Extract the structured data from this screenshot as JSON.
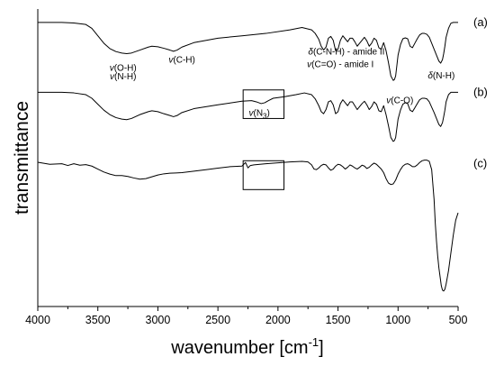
{
  "chart_data": {
    "type": "line",
    "xlabel": "wavenumber [cm",
    "xlabel_superscript": "-1",
    "xlabel_suffix": "]",
    "ylabel": "transmittance",
    "xlim": [
      4000,
      500
    ],
    "ylim": [
      0,
      1
    ],
    "xticks": [
      4000,
      3500,
      3000,
      2500,
      2000,
      1500,
      1000,
      500
    ],
    "y_tick_labels": false,
    "grid": false,
    "legend": "none",
    "series": [
      {
        "name": "(a)",
        "x": [
          4000,
          3800,
          3700,
          3600,
          3550,
          3500,
          3450,
          3400,
          3350,
          3300,
          3260,
          3220,
          3150,
          3080,
          3050,
          3000,
          2950,
          2900,
          2870,
          2840,
          2800,
          2700,
          2500,
          2300,
          2100,
          1900,
          1800,
          1720,
          1690,
          1660,
          1640,
          1620,
          1600,
          1580,
          1560,
          1540,
          1520,
          1500,
          1480,
          1460,
          1440,
          1420,
          1400,
          1380,
          1360,
          1340,
          1320,
          1300,
          1280,
          1260,
          1240,
          1220,
          1200,
          1180,
          1160,
          1140,
          1120,
          1100,
          1080,
          1060,
          1040,
          1030,
          1020,
          1000,
          980,
          960,
          940,
          920,
          900,
          880,
          860,
          840,
          820,
          800,
          780,
          760,
          740,
          720,
          700,
          680,
          660,
          645,
          630,
          620,
          610,
          600,
          580,
          560,
          540,
          520,
          500
        ],
        "y": [
          0.955,
          0.955,
          0.953,
          0.948,
          0.935,
          0.91,
          0.885,
          0.867,
          0.857,
          0.852,
          0.85,
          0.852,
          0.862,
          0.872,
          0.875,
          0.873,
          0.868,
          0.862,
          0.858,
          0.862,
          0.872,
          0.887,
          0.902,
          0.91,
          0.918,
          0.93,
          0.938,
          0.93,
          0.918,
          0.898,
          0.875,
          0.862,
          0.872,
          0.902,
          0.908,
          0.895,
          0.86,
          0.865,
          0.895,
          0.91,
          0.9,
          0.89,
          0.902,
          0.902,
          0.89,
          0.875,
          0.885,
          0.895,
          0.905,
          0.893,
          0.875,
          0.885,
          0.902,
          0.895,
          0.87,
          0.865,
          0.887,
          0.86,
          0.82,
          0.775,
          0.76,
          0.763,
          0.775,
          0.845,
          0.88,
          0.9,
          0.903,
          0.9,
          0.875,
          0.87,
          0.885,
          0.9,
          0.913,
          0.918,
          0.918,
          0.915,
          0.905,
          0.885,
          0.865,
          0.845,
          0.825,
          0.818,
          0.83,
          0.85,
          0.875,
          0.905,
          0.935,
          0.952,
          0.955,
          0.955,
          0.955
        ]
      },
      {
        "name": "(b)",
        "x": [
          4000,
          3800,
          3700,
          3600,
          3550,
          3500,
          3450,
          3400,
          3350,
          3300,
          3260,
          3220,
          3150,
          3080,
          3050,
          3000,
          2950,
          2900,
          2870,
          2840,
          2800,
          2700,
          2500,
          2300,
          2220,
          2180,
          2140,
          2110,
          2080,
          2040,
          1950,
          1850,
          1780,
          1720,
          1690,
          1660,
          1640,
          1620,
          1600,
          1580,
          1560,
          1540,
          1520,
          1500,
          1480,
          1460,
          1440,
          1420,
          1400,
          1380,
          1360,
          1340,
          1320,
          1300,
          1280,
          1260,
          1240,
          1220,
          1200,
          1180,
          1160,
          1140,
          1120,
          1100,
          1080,
          1060,
          1040,
          1030,
          1020,
          1000,
          980,
          960,
          940,
          920,
          900,
          880,
          860,
          840,
          820,
          800,
          780,
          760,
          740,
          720,
          700,
          680,
          660,
          645,
          630,
          620,
          610,
          600,
          580,
          560,
          540,
          520,
          500
        ],
        "y": [
          0.72,
          0.72,
          0.718,
          0.712,
          0.7,
          0.68,
          0.66,
          0.645,
          0.635,
          0.63,
          0.628,
          0.632,
          0.645,
          0.655,
          0.658,
          0.655,
          0.648,
          0.642,
          0.638,
          0.642,
          0.652,
          0.665,
          0.678,
          0.69,
          0.692,
          0.688,
          0.682,
          0.685,
          0.692,
          0.7,
          0.705,
          0.712,
          0.718,
          0.712,
          0.698,
          0.675,
          0.655,
          0.648,
          0.662,
          0.688,
          0.692,
          0.678,
          0.648,
          0.655,
          0.682,
          0.695,
          0.685,
          0.675,
          0.688,
          0.688,
          0.675,
          0.662,
          0.672,
          0.682,
          0.69,
          0.678,
          0.662,
          0.672,
          0.688,
          0.68,
          0.658,
          0.655,
          0.675,
          0.645,
          0.608,
          0.568,
          0.555,
          0.558,
          0.568,
          0.63,
          0.66,
          0.68,
          0.685,
          0.682,
          0.66,
          0.655,
          0.668,
          0.682,
          0.695,
          0.7,
          0.7,
          0.698,
          0.688,
          0.67,
          0.652,
          0.632,
          0.612,
          0.605,
          0.618,
          0.638,
          0.66,
          0.688,
          0.712,
          0.72,
          0.72,
          0.72,
          0.72
        ]
      },
      {
        "name": "(c)",
        "x": [
          4000,
          3900,
          3800,
          3750,
          3700,
          3650,
          3600,
          3550,
          3500,
          3450,
          3400,
          3350,
          3300,
          3250,
          3200,
          3150,
          3100,
          3050,
          3000,
          2950,
          2900,
          2850,
          2800,
          2700,
          2600,
          2500,
          2400,
          2300,
          2270,
          2250,
          2230,
          2200,
          2100,
          2000,
          1900,
          1800,
          1750,
          1720,
          1700,
          1680,
          1660,
          1640,
          1620,
          1600,
          1580,
          1560,
          1540,
          1520,
          1500,
          1480,
          1460,
          1440,
          1420,
          1400,
          1380,
          1360,
          1340,
          1320,
          1300,
          1280,
          1260,
          1240,
          1220,
          1200,
          1180,
          1160,
          1140,
          1120,
          1100,
          1080,
          1060,
          1040,
          1020,
          1000,
          980,
          960,
          940,
          920,
          900,
          880,
          860,
          840,
          820,
          800,
          780,
          760,
          740,
          720,
          700,
          690,
          680,
          670,
          660,
          650,
          640,
          630,
          620,
          610,
          600,
          580,
          560,
          540,
          520,
          500
        ],
        "y": [
          0.485,
          0.478,
          0.48,
          0.474,
          0.48,
          0.475,
          0.477,
          0.472,
          0.462,
          0.452,
          0.445,
          0.44,
          0.44,
          0.437,
          0.432,
          0.428,
          0.43,
          0.436,
          0.442,
          0.446,
          0.448,
          0.449,
          0.45,
          0.455,
          0.46,
          0.465,
          0.47,
          0.472,
          0.484,
          0.466,
          0.474,
          0.476,
          0.48,
          0.483,
          0.486,
          0.488,
          0.486,
          0.476,
          0.462,
          0.46,
          0.466,
          0.474,
          0.478,
          0.476,
          0.466,
          0.458,
          0.462,
          0.472,
          0.478,
          0.476,
          0.47,
          0.462,
          0.468,
          0.476,
          0.472,
          0.466,
          0.462,
          0.468,
          0.475,
          0.472,
          0.464,
          0.468,
          0.476,
          0.482,
          0.478,
          0.47,
          0.462,
          0.45,
          0.43,
          0.415,
          0.41,
          0.412,
          0.425,
          0.445,
          0.46,
          0.472,
          0.478,
          0.48,
          0.476,
          0.47,
          0.47,
          0.476,
          0.484,
          0.49,
          0.492,
          0.492,
          0.488,
          0.46,
          0.36,
          0.28,
          0.22,
          0.17,
          0.13,
          0.1,
          0.07,
          0.055,
          0.052,
          0.058,
          0.075,
          0.12,
          0.18,
          0.24,
          0.29,
          0.315
        ]
      }
    ],
    "series_labels": [
      "(a)",
      "(b)",
      "(c)"
    ],
    "annotations": [
      {
        "parts": [
          {
            "t": "v",
            "italic": true
          },
          {
            "t": "(O-H)"
          }
        ],
        "x": 3290,
        "y": 0.793
      },
      {
        "parts": [
          {
            "t": "v",
            "italic": true
          },
          {
            "t": "(N-H)"
          }
        ],
        "x": 3290,
        "y": 0.764
      },
      {
        "parts": [
          {
            "t": "v",
            "italic": true
          },
          {
            "t": "(C-H)"
          }
        ],
        "x": 2800,
        "y": 0.82
      },
      {
        "parts": [
          {
            "t": "δ",
            "italic": true
          },
          {
            "t": "(C-N-H) - amide II"
          }
        ],
        "x": 1430,
        "y": 0.847
      },
      {
        "parts": [
          {
            "t": "v",
            "italic": true
          },
          {
            "t": "(C=O) - amide I"
          }
        ],
        "x": 1480,
        "y": 0.804
      },
      {
        "parts": [
          {
            "t": "δ",
            "italic": true
          },
          {
            "t": "(N-H)"
          }
        ],
        "x": 640,
        "y": 0.767
      },
      {
        "parts": [
          {
            "t": "v",
            "italic": true
          },
          {
            "t": "(C-O)"
          }
        ],
        "x": 985,
        "y": 0.684
      },
      {
        "parts": [
          {
            "t": "v",
            "italic": true
          },
          {
            "t": "(N"
          },
          {
            "t": "3",
            "sub": true
          },
          {
            "t": ")"
          }
        ],
        "x": 2155,
        "y": 0.641,
        "size": 12
      }
    ],
    "boxes": [
      {
        "x0": 2290,
        "x1": 1950,
        "y0": 0.632,
        "y1": 0.728
      },
      {
        "x0": 2290,
        "x1": 1950,
        "y0": 0.393,
        "y1": 0.49
      }
    ]
  }
}
